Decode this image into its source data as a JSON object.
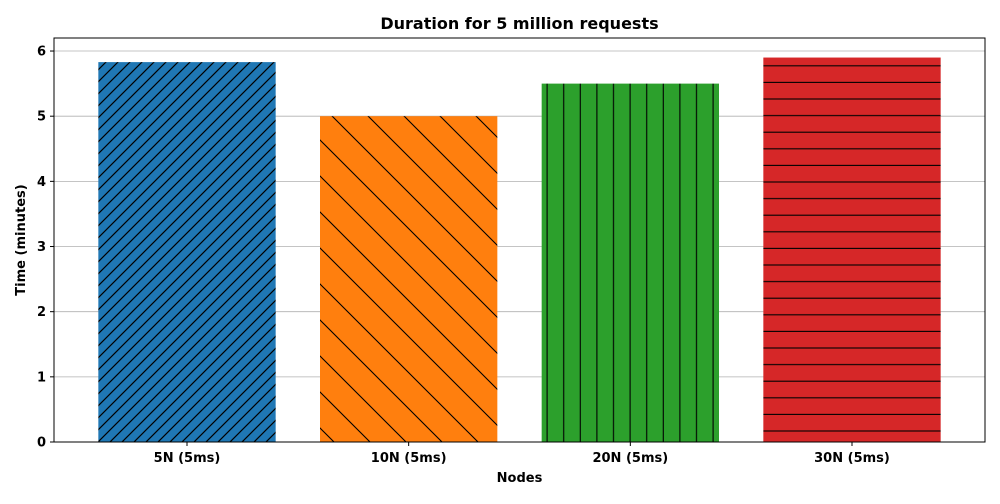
{
  "chart_data": {
    "type": "bar",
    "title": "Duration for 5 million requests",
    "xlabel": "Nodes",
    "ylabel": "Time (minutes)",
    "categories": [
      "5N (5ms)",
      "10N (5ms)",
      "20N (5ms)",
      "30N (5ms)"
    ],
    "values": [
      5.83,
      5.0,
      5.5,
      5.9
    ],
    "colors": [
      "#1f77b4",
      "#ff7f0e",
      "#2ca02c",
      "#d62728"
    ],
    "hatches": [
      "//",
      "\\",
      "|",
      "-"
    ],
    "ylim": [
      0,
      6.2
    ],
    "yticks": [
      0,
      1,
      2,
      3,
      4,
      5,
      6
    ],
    "grid": "y-axis",
    "legend": "none"
  }
}
